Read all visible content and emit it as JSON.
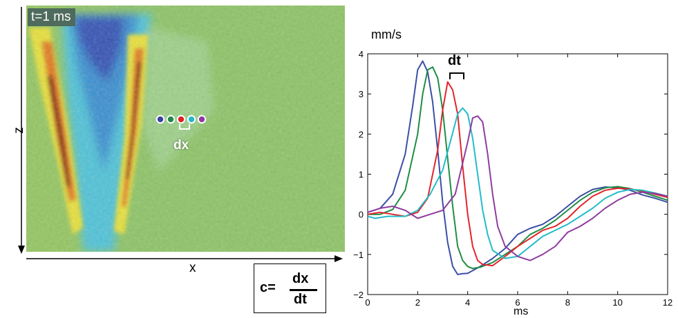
{
  "heatmap": {
    "time_label": "t=1 ms",
    "dx_label": "dx",
    "z_axis_label": "z",
    "x_axis_label": "x",
    "marker_colors": [
      "#3c3fa8",
      "#1f8a47",
      "#e02020",
      "#26b7c9",
      "#8e3a9f"
    ]
  },
  "formula": {
    "c": "c=",
    "numerator": "dx",
    "denominator": "dt"
  },
  "dt_label": "dt",
  "chart_data": {
    "type": "line",
    "title": "",
    "xlabel": "ms",
    "ylabel": "mm/s",
    "xlim": [
      0,
      12
    ],
    "ylim": [
      -2,
      4
    ],
    "xticks": [
      0,
      2,
      4,
      6,
      8,
      10,
      12
    ],
    "yticks": [
      -2,
      -1,
      0,
      1,
      2,
      3,
      4
    ],
    "grid": false,
    "series": [
      {
        "color": "#3b4ea5",
        "x": [
          0,
          0.5,
          1.0,
          1.5,
          1.8,
          2.0,
          2.2,
          2.4,
          2.6,
          2.8,
          3.0,
          3.2,
          3.4,
          3.6,
          3.8,
          4.0,
          4.5,
          5.0,
          5.5,
          6.0,
          6.5,
          7.0,
          7.5,
          8.0,
          8.5,
          9.0,
          9.5,
          10.0,
          10.5,
          11.0,
          11.5,
          12.0
        ],
        "y": [
          0.05,
          0.15,
          0.5,
          1.5,
          2.7,
          3.6,
          3.82,
          3.55,
          2.8,
          1.6,
          0.3,
          -0.7,
          -1.3,
          -1.5,
          -1.48,
          -1.47,
          -1.3,
          -1.1,
          -0.85,
          -0.5,
          -0.35,
          -0.25,
          -0.05,
          0.2,
          0.45,
          0.62,
          0.68,
          0.66,
          0.6,
          0.48,
          0.4,
          0.3
        ]
      },
      {
        "color": "#1e8d45",
        "x": [
          0,
          0.5,
          1.0,
          1.5,
          2.0,
          2.2,
          2.4,
          2.6,
          2.8,
          3.0,
          3.2,
          3.4,
          3.6,
          3.8,
          4.0,
          4.2,
          4.5,
          5.0,
          5.5,
          6.0,
          6.5,
          7.0,
          7.5,
          8.0,
          8.5,
          9.0,
          9.5,
          10.0,
          10.5,
          11.0,
          11.5,
          12.0
        ],
        "y": [
          0.0,
          0.0,
          0.12,
          0.6,
          2.0,
          3.0,
          3.6,
          3.67,
          3.4,
          2.6,
          1.4,
          0.2,
          -0.8,
          -1.15,
          -1.3,
          -1.35,
          -1.32,
          -1.2,
          -1.0,
          -0.8,
          -0.5,
          -0.35,
          -0.15,
          0.1,
          0.35,
          0.55,
          0.66,
          0.69,
          0.64,
          0.55,
          0.45,
          0.35
        ]
      },
      {
        "color": "#e3242b",
        "x": [
          0,
          0.5,
          1.0,
          1.5,
          2.0,
          2.4,
          2.8,
          3.0,
          3.2,
          3.4,
          3.6,
          3.8,
          4.0,
          4.2,
          4.4,
          4.6,
          5.0,
          5.5,
          6.0,
          6.5,
          7.0,
          7.5,
          8.0,
          8.5,
          9.0,
          9.5,
          10.0,
          10.5,
          11.0,
          11.5,
          12.0
        ],
        "y": [
          0.0,
          0.05,
          0.0,
          -0.05,
          0.05,
          0.4,
          1.6,
          2.6,
          3.3,
          3.1,
          2.5,
          1.2,
          0.0,
          -0.8,
          -1.15,
          -1.25,
          -1.28,
          -1.05,
          -0.8,
          -0.6,
          -0.4,
          -0.3,
          -0.1,
          0.2,
          0.45,
          0.6,
          0.65,
          0.63,
          0.58,
          0.5,
          0.42
        ]
      },
      {
        "color": "#22bcc8",
        "x": [
          0,
          0.3,
          0.8,
          1.5,
          2.0,
          2.5,
          3.0,
          3.3,
          3.6,
          3.8,
          4.0,
          4.2,
          4.4,
          4.6,
          4.8,
          5.0,
          5.5,
          6.0,
          6.5,
          7.0,
          7.5,
          8.0,
          8.5,
          9.0,
          9.5,
          10.0,
          10.5,
          11.0,
          11.5,
          12.0
        ],
        "y": [
          -0.05,
          -0.1,
          -0.05,
          -0.05,
          0.1,
          0.5,
          1.1,
          1.8,
          2.5,
          2.65,
          2.5,
          1.9,
          1.0,
          0.1,
          -0.5,
          -0.9,
          -1.1,
          -1.05,
          -0.8,
          -0.55,
          -0.4,
          -0.25,
          -0.05,
          0.15,
          0.4,
          0.55,
          0.62,
          0.6,
          0.53,
          0.45
        ]
      },
      {
        "color": "#8e3c9e",
        "x": [
          0,
          0.5,
          1.0,
          1.5,
          2.0,
          2.5,
          3.0,
          3.5,
          4.0,
          4.2,
          4.4,
          4.6,
          4.8,
          5.0,
          5.2,
          5.5,
          6.0,
          6.5,
          7.0,
          7.5,
          8.0,
          8.5,
          9.0,
          9.5,
          10.0,
          10.5,
          11.0,
          11.5,
          12.0
        ],
        "y": [
          0.05,
          0.15,
          0.2,
          0.1,
          -0.1,
          0.0,
          0.1,
          0.5,
          1.8,
          2.4,
          2.45,
          2.3,
          1.5,
          0.5,
          -0.3,
          -0.8,
          -1.05,
          -1.15,
          -1.0,
          -0.8,
          -0.45,
          -0.3,
          -0.1,
          0.15,
          0.35,
          0.5,
          0.55,
          0.52,
          0.45
        ]
      }
    ]
  }
}
